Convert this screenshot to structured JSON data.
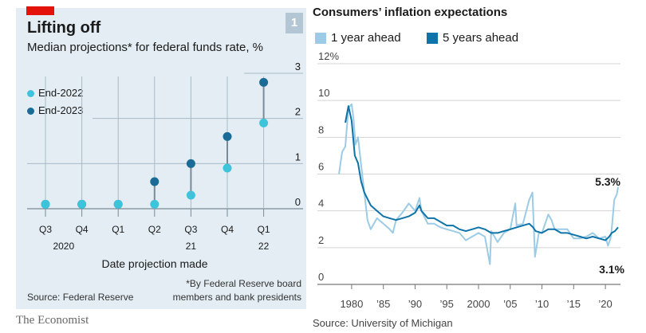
{
  "left_panel": {
    "number_badge": "1",
    "title": "Lifting off",
    "subtitle": "Median projections* for federal funds rate, %",
    "source": "Source: Federal Reserve",
    "note_line1": "*By Federal Reserve board",
    "note_line2": "members and bank presidents",
    "xlabel": "Date projection made",
    "legend": [
      "End-2022",
      "End-2023"
    ],
    "colors": {
      "end2022": "#3ec4da",
      "end2023": "#1a6b96",
      "background": "#e3edf3"
    }
  },
  "right_panel": {
    "title": "Consumers’ inflation expectations",
    "legend": [
      "1 year ahead",
      "5 years ahead"
    ],
    "source": "Source: University of Michigan",
    "callout_1yr": "5.3%",
    "callout_5yr": "3.1%",
    "colors": {
      "one_year": "#9ccbe6",
      "five_years": "#0e73a8"
    }
  },
  "branding": "The Economist",
  "chart_data": [
    {
      "type": "scatter",
      "title": "Lifting off",
      "subtitle": "Median projections* for federal funds rate, %",
      "xlabel": "Date projection made",
      "categories": [
        "Q3",
        "Q4",
        "Q1",
        "Q2",
        "Q3",
        "Q4",
        "Q1"
      ],
      "year_labels": [
        {
          "label": "2020",
          "at": 0.5
        },
        {
          "label": "21",
          "at": 4
        },
        {
          "label": "22",
          "at": 6
        }
      ],
      "ylim": [
        0,
        3
      ],
      "yticks": [
        "0",
        "1",
        "2",
        "3"
      ],
      "series": [
        {
          "name": "End-2022",
          "values": [
            0.1,
            0.1,
            0.1,
            0.1,
            0.3,
            0.9,
            1.9
          ]
        },
        {
          "name": "End-2023",
          "values": [
            0.1,
            0.1,
            0.1,
            0.6,
            1.0,
            1.6,
            2.8
          ]
        }
      ],
      "grid": true
    },
    {
      "type": "line",
      "title": "Consumers’ inflation expectations",
      "ylim": [
        0,
        12
      ],
      "yticks": [
        "0",
        "2",
        "4",
        "6",
        "8",
        "10",
        "12%"
      ],
      "xlim": [
        1978,
        2022
      ],
      "xticks": [
        "1980",
        "’85",
        "’90",
        "’95",
        "2000",
        "’05",
        "’10",
        "’15",
        "’20"
      ],
      "series": [
        {
          "name": "1 year ahead",
          "x": [
            1978.0,
            1978.5,
            1979.0,
            1979.5,
            1980.0,
            1980.3,
            1980.6,
            1981.0,
            1981.5,
            1982.0,
            1982.5,
            1983.0,
            1983.5,
            1984.0,
            1985.0,
            1986.0,
            1986.5,
            1987.0,
            1988.0,
            1989.0,
            1990.0,
            1990.7,
            1991.0,
            1992.0,
            1993.0,
            1994.0,
            1995.0,
            1996.0,
            1997.0,
            1998.0,
            1999.0,
            2000.0,
            2001.0,
            2001.8,
            2002.0,
            2003.0,
            2004.0,
            2005.0,
            2005.8,
            2006.0,
            2007.0,
            2008.0,
            2008.5,
            2008.9,
            2009.5,
            2010.0,
            2011.0,
            2011.5,
            2012.0,
            2013.0,
            2014.0,
            2015.0,
            2016.0,
            2017.0,
            2018.0,
            2019.0,
            2020.0,
            2020.4,
            2020.8,
            2021.0,
            2021.4,
            2021.8,
            2022.0
          ],
          "values": [
            6.0,
            7.2,
            7.5,
            9.6,
            9.8,
            9.0,
            7.6,
            8.0,
            6.5,
            5.0,
            3.5,
            3.0,
            3.3,
            3.6,
            3.3,
            3.0,
            2.8,
            3.5,
            3.9,
            4.4,
            4.0,
            4.7,
            4.0,
            3.3,
            3.3,
            3.1,
            3.0,
            2.9,
            2.8,
            2.4,
            2.6,
            2.8,
            2.6,
            1.1,
            2.9,
            2.3,
            2.8,
            3.0,
            4.4,
            3.2,
            3.3,
            4.6,
            5.0,
            1.5,
            2.8,
            2.8,
            3.8,
            3.5,
            3.0,
            3.0,
            3.0,
            2.5,
            2.5,
            2.6,
            2.8,
            2.5,
            2.6,
            2.1,
            2.5,
            3.0,
            4.6,
            4.9,
            5.3
          ]
        },
        {
          "name": "5 years ahead",
          "x": [
            1979.0,
            1979.5,
            1980.0,
            1980.5,
            1981.0,
            1981.5,
            1982.0,
            1983.0,
            1984.0,
            1985.0,
            1986.0,
            1987.0,
            1988.0,
            1989.0,
            1990.0,
            1990.7,
            1991.0,
            1992.0,
            1993.0,
            1994.0,
            1995.0,
            1996.0,
            1997.0,
            1998.0,
            1999.0,
            2000.0,
            2001.0,
            2002.0,
            2003.0,
            2004.0,
            2005.0,
            2006.0,
            2007.0,
            2008.0,
            2008.6,
            2009.0,
            2010.0,
            2011.0,
            2012.0,
            2013.0,
            2014.0,
            2015.0,
            2016.0,
            2017.0,
            2018.0,
            2019.0,
            2020.0,
            2020.6,
            2021.0,
            2021.5,
            2022.0
          ],
          "values": [
            8.8,
            9.7,
            8.9,
            7.0,
            6.6,
            5.6,
            5.0,
            4.3,
            4.0,
            3.7,
            3.6,
            3.5,
            3.6,
            3.7,
            3.9,
            4.3,
            4.0,
            3.6,
            3.6,
            3.4,
            3.2,
            3.2,
            3.0,
            2.9,
            3.0,
            3.1,
            3.0,
            2.8,
            2.8,
            2.9,
            3.0,
            3.1,
            3.2,
            3.3,
            3.1,
            2.9,
            2.8,
            3.0,
            3.0,
            2.8,
            2.8,
            2.7,
            2.6,
            2.5,
            2.6,
            2.5,
            2.4,
            2.6,
            2.8,
            2.9,
            3.1
          ]
        }
      ],
      "grid": true
    }
  ]
}
